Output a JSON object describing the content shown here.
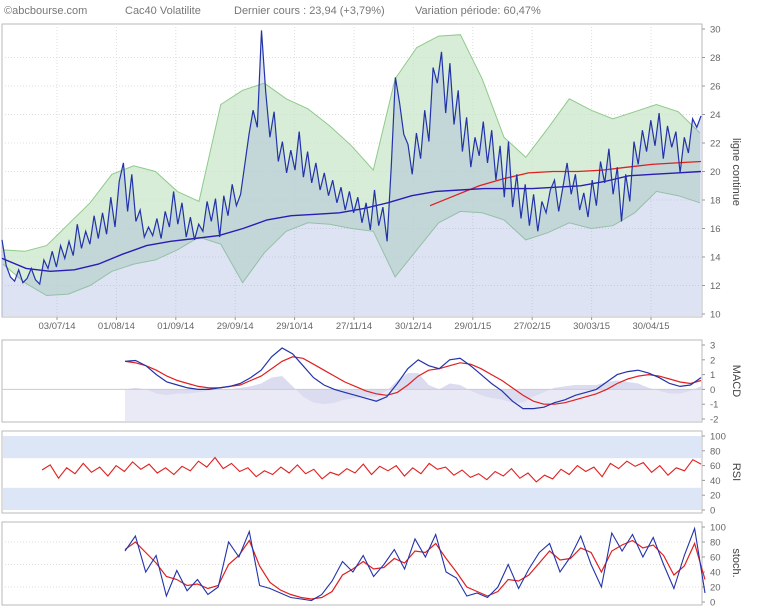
{
  "header": {
    "source": "©abcbourse.com",
    "instrument": "Cac40 Volatilite",
    "last_price": "Dernier cours : 23,94 (+3,79%)",
    "variation": "Variation période: 60,47%"
  },
  "colors": {
    "price_line": "#2233aa",
    "price_fill": "#9fb0dd",
    "bollinger_band": "#c8e6c6",
    "bollinger_edge": "#8fca8b",
    "ma_short": "#2a1cb5",
    "ma_long": "#e02020",
    "volume_area": "#dcdcf0",
    "grid": "#dcdcdc"
  },
  "chart_data": [
    {
      "type": "line",
      "panel": "price",
      "ylabel": "ligne continue",
      "ylim": [
        10,
        30
      ],
      "y_ticks": [
        "10",
        "12",
        "14",
        "16",
        "18",
        "20",
        "22",
        "24",
        "26",
        "28",
        "30"
      ],
      "x_ticks": [
        "03/07/14",
        "01/08/14",
        "01/09/14",
        "29/09/14",
        "29/10/14",
        "27/11/14",
        "30/12/14",
        "29/01/15",
        "27/02/15",
        "30/03/15",
        "30/04/15"
      ],
      "series": [
        {
          "key": "price",
          "values": [
            15.2,
            13.4,
            12.6,
            12.3,
            13.1,
            12.2,
            12.5,
            13.2,
            12.4,
            12.1,
            13.8,
            13.2,
            14.4,
            13.3,
            14.8,
            13.9,
            15.1,
            14.1,
            16.3,
            14.6,
            15.8,
            14.9,
            16.9,
            15.3,
            17.1,
            15.6,
            18.2,
            16.1,
            19.3,
            20.6,
            17.2,
            19.8,
            16.5,
            17.3,
            15.4,
            16.1,
            15.5,
            16.7,
            15.3,
            17.2,
            16.1,
            18.6,
            16.3,
            17.8,
            15.4,
            16.8,
            15.2,
            16.3,
            15.8,
            17.9,
            16.5,
            18.1,
            15.4,
            18.3,
            16.9,
            19.1,
            17.6,
            18.4,
            20.5,
            22.6,
            24.3,
            23.1,
            29.9,
            25.6,
            22.4,
            24.2,
            20.7,
            22.1,
            19.9,
            21.5,
            20.1,
            22.8,
            19.6,
            21.4,
            19.2,
            20.6,
            18.7,
            19.9,
            18.3,
            19.4,
            17.8,
            18.9,
            17.3,
            18.6,
            17.1,
            18.2,
            16.4,
            17.8,
            15.9,
            18.7,
            16.2,
            17.5,
            15.1,
            20.4,
            26.6,
            24.8,
            22.6,
            21.9,
            19.8,
            22.7,
            20.9,
            24.3,
            22.1,
            27.3,
            26.2,
            28.4,
            24.1,
            27.6,
            23.3,
            25.7,
            21.4,
            23.8,
            20.3,
            22.4,
            21.1,
            23.5,
            20.6,
            22.9,
            19.4,
            21.8,
            18.2,
            22.1,
            17.5,
            19.8,
            16.7,
            19.1,
            16.2,
            18.4,
            15.8,
            17.9,
            17.1,
            18.7,
            19.4,
            17.2,
            18.9,
            20.6,
            18.4,
            19.8,
            17.3,
            18.5,
            16.8,
            19.4,
            17.6,
            20.7,
            19.2,
            21.6,
            18.4,
            20.3,
            16.5,
            19.8,
            17.9,
            22.1,
            20.5,
            22.9,
            21.4,
            23.6,
            21.8,
            24.1,
            20.9,
            23.2,
            21.7,
            22.8,
            19.9,
            22.4,
            21.3,
            23.7,
            23.1,
            23.9
          ]
        },
        {
          "key": "bollinger_upper",
          "values": [
            14.5,
            14.4,
            14.8,
            16.3,
            17.8,
            19.8,
            20.4,
            20.0,
            18.6,
            17.9,
            24.7,
            25.7,
            26.2,
            25.1,
            24.4,
            23.2,
            21.8,
            20.1,
            26.5,
            28.7,
            29.5,
            29.6,
            26.5,
            22.4,
            21.0,
            23.0,
            25.1,
            24.3,
            23.7,
            24.2,
            24.7,
            24.2,
            22.7
          ]
        },
        {
          "key": "bollinger_lower",
          "values": [
            13.5,
            12.2,
            11.3,
            11.4,
            12.0,
            13.0,
            13.5,
            13.8,
            14.5,
            15.4,
            14.9,
            12.2,
            14.3,
            15.8,
            16.4,
            16.3,
            16.0,
            15.8,
            12.6,
            14.5,
            16.4,
            17.2,
            17.1,
            16.6,
            15.2,
            15.7,
            16.4,
            16.0,
            16.2,
            17.1,
            18.6,
            18.3,
            17.8
          ]
        },
        {
          "key": "ma_short",
          "values": [
            13.9,
            13.2,
            13.0,
            13.1,
            13.5,
            14.2,
            14.8,
            15.1,
            15.3,
            15.5,
            16.0,
            16.6,
            16.9,
            17.0,
            17.1,
            17.4,
            17.8,
            18.3,
            18.6,
            18.7,
            18.8,
            18.8,
            18.8,
            18.9,
            19.0,
            19.3,
            19.7,
            19.8,
            19.9,
            20.0
          ]
        },
        {
          "key": "ma_long",
          "values": [
            17.6,
            18.3,
            19.0,
            19.5,
            19.9,
            20.0,
            20.0,
            20.1,
            20.3,
            20.5,
            20.6,
            20.7
          ]
        }
      ]
    },
    {
      "type": "line",
      "panel": "macd",
      "ylabel": "MACD",
      "ylim": [
        -2,
        3
      ],
      "y_ticks": [
        "-2",
        "-1",
        "0",
        "1",
        "2",
        "3"
      ],
      "series": [
        {
          "key": "macd",
          "values": [
            1.9,
            1.95,
            1.6,
            1.0,
            0.5,
            0.3,
            0.1,
            0.0,
            0.0,
            0.1,
            0.2,
            0.4,
            0.8,
            1.3,
            2.2,
            2.8,
            2.4,
            1.6,
            0.8,
            0.3,
            0.0,
            -0.2,
            -0.4,
            -0.6,
            -0.8,
            -0.5,
            0.4,
            1.4,
            2.0,
            1.6,
            1.4,
            2.0,
            2.1,
            1.6,
            1.0,
            0.4,
            -0.1,
            -0.8,
            -1.3,
            -1.3,
            -1.2,
            -0.9,
            -0.7,
            -0.4,
            -0.2,
            0.0,
            0.5,
            1.0,
            1.2,
            1.3,
            1.1,
            0.8,
            0.4,
            0.2,
            0.3,
            0.8
          ]
        },
        {
          "key": "signal",
          "values": [
            1.9,
            1.8,
            1.6,
            1.3,
            0.9,
            0.6,
            0.4,
            0.2,
            0.1,
            0.1,
            0.2,
            0.3,
            0.6,
            0.9,
            1.4,
            1.9,
            2.2,
            2.1,
            1.7,
            1.3,
            0.9,
            0.5,
            0.2,
            -0.1,
            -0.3,
            -0.4,
            -0.2,
            0.3,
            0.9,
            1.3,
            1.4,
            1.6,
            1.8,
            1.7,
            1.4,
            1.0,
            0.6,
            0.1,
            -0.4,
            -0.8,
            -1.0,
            -1.0,
            -0.9,
            -0.7,
            -0.5,
            -0.3,
            0.0,
            0.4,
            0.7,
            0.9,
            1.0,
            0.9,
            0.7,
            0.5,
            0.4,
            0.6
          ]
        },
        {
          "key": "histogram",
          "values": [
            0.0,
            0.1,
            0.0,
            -0.3,
            -0.4,
            -0.3,
            -0.3,
            -0.2,
            -0.1,
            0.0,
            0.0,
            0.1,
            0.2,
            0.4,
            0.8,
            0.9,
            0.2,
            -0.5,
            -0.9,
            -1.0,
            -0.9,
            -0.7,
            -0.6,
            -0.5,
            -0.5,
            -0.1,
            0.6,
            1.1,
            1.1,
            0.3,
            0.0,
            0.4,
            0.3,
            -0.1,
            -0.4,
            -0.6,
            -0.7,
            -0.9,
            -0.9,
            -0.5,
            -0.2,
            0.1,
            0.2,
            0.3,
            0.3,
            0.3,
            0.5,
            0.6,
            0.5,
            0.4,
            0.1,
            -0.1,
            -0.3,
            -0.3,
            -0.1,
            0.2
          ]
        }
      ]
    },
    {
      "type": "line",
      "panel": "rsi",
      "ylabel": "RSI",
      "ylim": [
        0,
        100
      ],
      "y_ticks": [
        "0",
        "20",
        "40",
        "60",
        "80",
        "100"
      ],
      "series": [
        {
          "key": "rsi",
          "values": [
            54,
            61,
            43,
            57,
            49,
            63,
            51,
            58,
            46,
            60,
            52,
            65,
            55,
            62,
            50,
            57,
            48,
            59,
            53,
            66,
            58,
            71,
            56,
            63,
            52,
            57,
            45,
            53,
            48,
            58,
            50,
            61,
            49,
            55,
            42,
            51,
            47,
            56,
            50,
            62,
            48,
            59,
            53,
            60,
            46,
            57,
            49,
            63,
            55,
            58,
            47,
            54,
            44,
            49,
            41,
            52,
            46,
            56,
            43,
            50,
            38,
            47,
            42,
            55,
            48,
            60,
            52,
            58,
            45,
            63,
            56,
            66,
            59,
            64,
            51,
            60,
            47,
            57,
            53,
            68,
            62
          ]
        }
      ]
    },
    {
      "type": "line",
      "panel": "stoch",
      "ylabel": "stoch.",
      "ylim": [
        0,
        100
      ],
      "y_ticks": [
        "0",
        "20",
        "40",
        "60",
        "80",
        "100"
      ],
      "series": [
        {
          "key": "stoch_k",
          "values": [
            68,
            88,
            40,
            62,
            8,
            42,
            15,
            30,
            10,
            20,
            80,
            60,
            94,
            22,
            18,
            12,
            6,
            4,
            2,
            10,
            28,
            54,
            40,
            62,
            34,
            50,
            70,
            44,
            84,
            60,
            90,
            40,
            32,
            8,
            12,
            6,
            20,
            50,
            18,
            44,
            66,
            78,
            40,
            60,
            88,
            50,
            20,
            92,
            68,
            90,
            60,
            86,
            50,
            18,
            62,
            98,
            12
          ]
        },
        {
          "key": "stoch_d",
          "values": [
            70,
            80,
            66,
            52,
            34,
            30,
            22,
            24,
            18,
            22,
            50,
            62,
            82,
            48,
            26,
            16,
            10,
            6,
            4,
            6,
            14,
            36,
            44,
            54,
            44,
            46,
            58,
            52,
            68,
            66,
            78,
            58,
            40,
            20,
            14,
            8,
            14,
            30,
            28,
            36,
            52,
            68,
            56,
            58,
            72,
            66,
            40,
            68,
            76,
            82,
            72,
            76,
            62,
            36,
            48,
            78,
            30
          ]
        }
      ]
    }
  ]
}
